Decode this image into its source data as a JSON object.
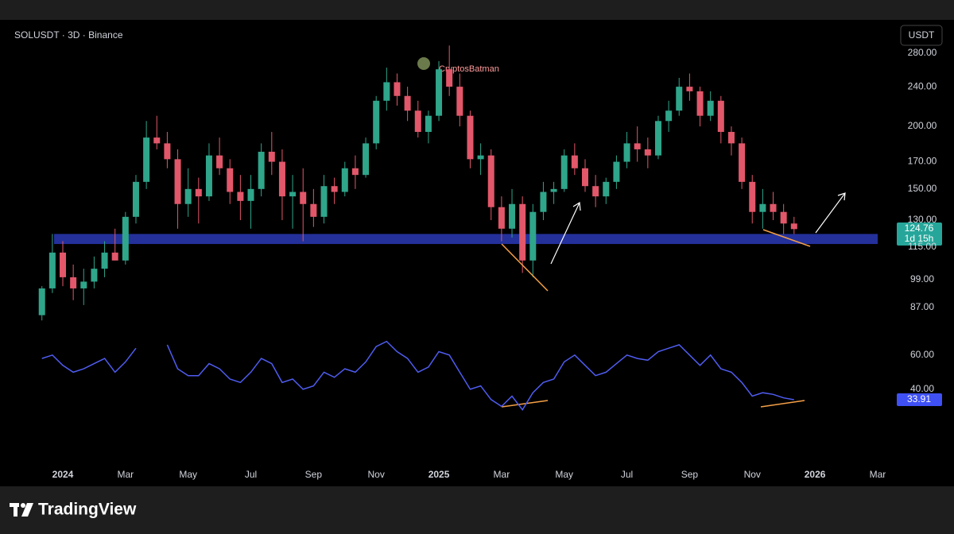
{
  "chart_data": {
    "type": "candlestick",
    "title": "SOLUSDT · 3D · Binance",
    "currency": "USDT",
    "watermark": "CryptosBatman",
    "countdown": "1d 15h",
    "categories": [
      null,
      null,
      "2024",
      null,
      null,
      null,
      null,
      null,
      "Mar",
      null,
      null,
      null,
      null,
      null,
      "May",
      null,
      null,
      null,
      null,
      null,
      "Jul",
      null,
      null,
      null,
      null,
      null,
      "Sep",
      null,
      null,
      null,
      null,
      null,
      "Nov",
      null,
      null,
      null,
      null,
      null,
      "2025",
      null,
      null,
      null,
      null,
      null,
      "Mar",
      null,
      null,
      null,
      null,
      null,
      "May",
      null,
      null,
      null,
      null,
      null,
      "Jul",
      null,
      null,
      null,
      null,
      null,
      "Sep",
      null,
      null,
      null,
      null,
      null,
      "Nov",
      null,
      null,
      null,
      null,
      null,
      "2026",
      null,
      null,
      null,
      null,
      null,
      "Mar"
    ],
    "open": [
      84,
      95,
      112,
      100,
      95,
      98,
      104,
      112,
      108,
      132,
      155,
      190,
      185,
      172,
      140,
      150,
      145,
      175,
      165,
      148,
      142,
      150,
      178,
      170,
      145,
      148,
      140,
      132,
      152,
      148,
      165,
      160,
      185,
      225,
      245,
      230,
      215,
      195,
      210,
      260,
      240,
      210,
      172,
      175,
      138,
      125,
      140,
      108,
      135,
      148,
      150,
      175,
      165,
      152,
      145,
      155,
      170,
      185,
      180,
      175,
      205,
      215,
      240,
      235,
      210,
      225,
      195,
      185,
      155,
      135,
      140,
      135,
      128,
      null,
      null,
      null,
      null,
      null,
      null,
      null,
      null
    ],
    "high": [
      96,
      122,
      118,
      106,
      104,
      110,
      118,
      125,
      135,
      160,
      205,
      210,
      195,
      180,
      165,
      158,
      185,
      190,
      172,
      160,
      160,
      185,
      195,
      180,
      160,
      165,
      150,
      160,
      158,
      170,
      175,
      190,
      230,
      262,
      255,
      240,
      225,
      215,
      270,
      290,
      255,
      215,
      185,
      180,
      145,
      150,
      145,
      140,
      155,
      155,
      180,
      185,
      172,
      160,
      158,
      175,
      195,
      200,
      190,
      210,
      225,
      250,
      255,
      240,
      235,
      230,
      200,
      190,
      160,
      150,
      148,
      140,
      132,
      null,
      null,
      null,
      null,
      null,
      null,
      null,
      null
    ],
    "low": [
      82,
      93,
      96,
      90,
      88,
      95,
      100,
      108,
      106,
      128,
      150,
      180,
      165,
      125,
      132,
      128,
      142,
      160,
      140,
      130,
      125,
      145,
      160,
      130,
      125,
      118,
      126,
      128,
      140,
      145,
      150,
      158,
      180,
      215,
      220,
      205,
      190,
      185,
      205,
      230,
      200,
      165,
      160,
      130,
      118,
      120,
      102,
      100,
      130,
      140,
      148,
      160,
      148,
      138,
      140,
      150,
      165,
      170,
      165,
      172,
      195,
      210,
      225,
      200,
      205,
      185,
      175,
      150,
      128,
      125,
      130,
      122,
      122,
      null,
      null,
      null,
      null,
      null,
      null,
      null,
      null
    ],
    "close": [
      95,
      112,
      100,
      95,
      98,
      104,
      112,
      108,
      132,
      155,
      190,
      185,
      172,
      140,
      150,
      145,
      175,
      165,
      148,
      142,
      150,
      178,
      170,
      145,
      148,
      140,
      132,
      152,
      148,
      165,
      160,
      185,
      225,
      245,
      230,
      215,
      195,
      210,
      260,
      240,
      210,
      172,
      175,
      138,
      125,
      140,
      108,
      135,
      148,
      150,
      175,
      165,
      152,
      145,
      155,
      170,
      185,
      180,
      175,
      205,
      215,
      240,
      235,
      210,
      225,
      195,
      185,
      155,
      135,
      140,
      135,
      128,
      124.76,
      null,
      null,
      null,
      null,
      null,
      null,
      null,
      null
    ],
    "up_color": "#2fa58a",
    "down_color": "#e2576a",
    "ylim": [
      80,
      300
    ],
    "log_scale": true,
    "yticks": [
      {
        "value": 280,
        "label": "280.00"
      },
      {
        "value": 240,
        "label": "240.00"
      },
      {
        "value": 200,
        "label": "200.00"
      },
      {
        "value": 170,
        "label": "170.00"
      },
      {
        "value": 150,
        "label": "150.00"
      },
      {
        "value": 130,
        "label": "130.00"
      },
      {
        "value": 115,
        "label": "115.00"
      },
      {
        "value": 99,
        "label": "99.00"
      },
      {
        "value": 87,
        "label": "87.00"
      }
    ],
    "support_zone": [
      116.5,
      122
    ],
    "zone_color": "#24319b",
    "rsi": {
      "color": "#4f5cf0",
      "axis": "y2",
      "values": [
        58,
        60,
        54,
        50,
        52,
        55,
        58,
        50,
        56,
        64,
        null,
        null,
        66,
        52,
        48,
        48,
        55,
        52,
        46,
        44,
        50,
        58,
        55,
        44,
        46,
        40,
        42,
        50,
        47,
        52,
        50,
        56,
        65,
        68,
        62,
        58,
        50,
        53,
        62,
        60,
        50,
        40,
        42,
        34,
        30,
        36,
        28,
        38,
        44,
        46,
        56,
        60,
        54,
        48,
        50,
        55,
        60,
        58,
        57,
        62,
        64,
        66,
        60,
        54,
        60,
        52,
        50,
        44,
        36,
        38,
        37,
        35,
        33.91,
        null,
        null,
        null,
        null,
        null,
        null,
        null,
        null
      ]
    },
    "y2lim": [
      0,
      72
    ],
    "y2ticks": [
      {
        "value": 60,
        "label": "60.00"
      },
      {
        "value": 40,
        "label": "40.00"
      }
    ]
  },
  "footer": {
    "brand": "TradingView"
  }
}
